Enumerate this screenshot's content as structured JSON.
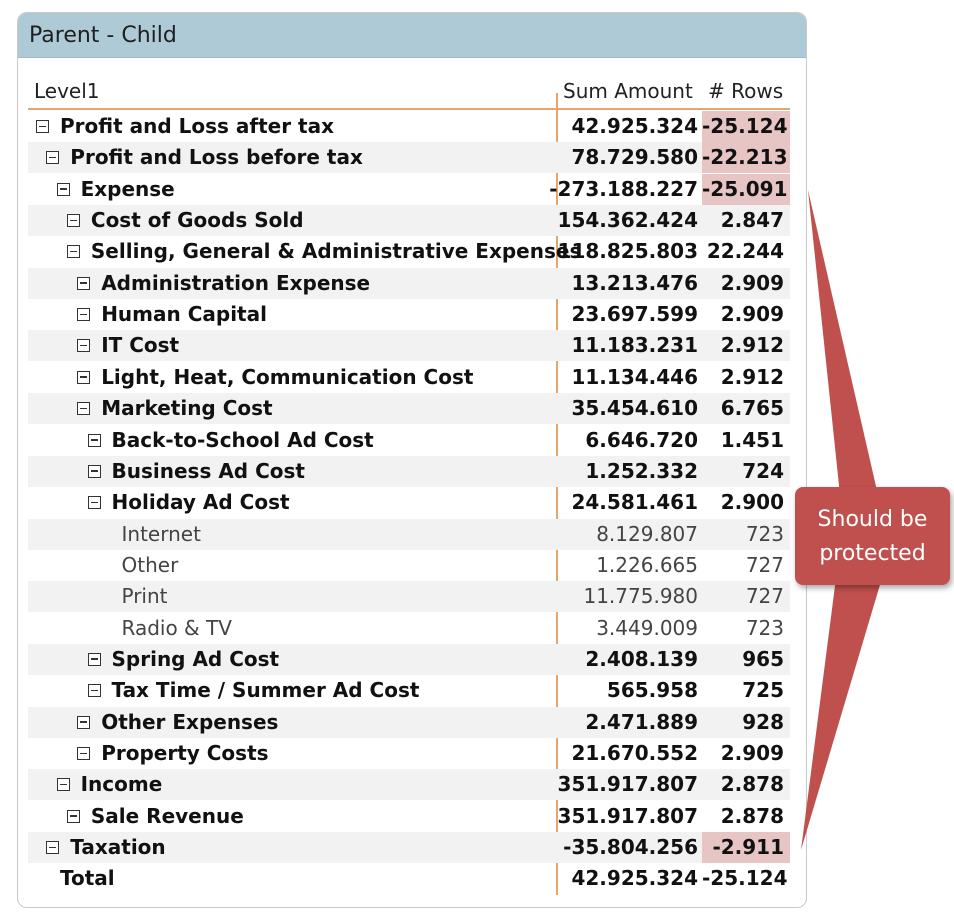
{
  "visual": {
    "title": "Parent - Child",
    "headers": {
      "level": "Level1",
      "amount": "Sum Amount",
      "rows": "# Rows"
    },
    "callout": {
      "line1": "Should be",
      "line2": "protected",
      "color": "#c0504d"
    },
    "highlight_color": "#e8c5c5",
    "rows": [
      {
        "label": "Profit and Loss after tax",
        "amount": "42.925.324",
        "count": "-25.124",
        "level": 0,
        "type": "parent",
        "highlight": true
      },
      {
        "label": "Profit and Loss before tax",
        "amount": "78.729.580",
        "count": "-22.213",
        "level": 1,
        "type": "parent",
        "highlight": true
      },
      {
        "label": "Expense",
        "amount": "-273.188.227",
        "count": "-25.091",
        "level": 2,
        "type": "parent",
        "highlight": true
      },
      {
        "label": "Cost of Goods Sold",
        "amount": "154.362.424",
        "count": "2.847",
        "level": 3,
        "type": "parent",
        "highlight": false
      },
      {
        "label": "Selling, General & Administrative Expenses",
        "amount": "118.825.803",
        "count": "22.244",
        "level": 3,
        "type": "parent",
        "highlight": false
      },
      {
        "label": "Administration Expense",
        "amount": "13.213.476",
        "count": "2.909",
        "level": 4,
        "type": "parent",
        "highlight": false
      },
      {
        "label": "Human Capital",
        "amount": "23.697.599",
        "count": "2.909",
        "level": 4,
        "type": "parent",
        "highlight": false
      },
      {
        "label": "IT Cost",
        "amount": "11.183.231",
        "count": "2.912",
        "level": 4,
        "type": "parent",
        "highlight": false
      },
      {
        "label": "Light, Heat, Communication Cost",
        "amount": "11.134.446",
        "count": "2.912",
        "level": 4,
        "type": "parent",
        "highlight": false
      },
      {
        "label": "Marketing Cost",
        "amount": "35.454.610",
        "count": "6.765",
        "level": 4,
        "type": "parent",
        "highlight": false
      },
      {
        "label": "Back-to-School Ad Cost",
        "amount": "6.646.720",
        "count": "1.451",
        "level": 5,
        "type": "parent",
        "highlight": false
      },
      {
        "label": "Business Ad Cost",
        "amount": "1.252.332",
        "count": "724",
        "level": 5,
        "type": "parent",
        "highlight": false
      },
      {
        "label": "Holiday Ad Cost",
        "amount": "24.581.461",
        "count": "2.900",
        "level": 5,
        "type": "parent",
        "highlight": false
      },
      {
        "label": "Internet",
        "amount": "8.129.807",
        "count": "723",
        "level": 6,
        "type": "leaf",
        "highlight": false
      },
      {
        "label": "Other",
        "amount": "1.226.665",
        "count": "727",
        "level": 6,
        "type": "leaf",
        "highlight": false
      },
      {
        "label": "Print",
        "amount": "11.775.980",
        "count": "727",
        "level": 6,
        "type": "leaf",
        "highlight": false
      },
      {
        "label": "Radio & TV",
        "amount": "3.449.009",
        "count": "723",
        "level": 6,
        "type": "leaf",
        "highlight": false
      },
      {
        "label": "Spring Ad Cost",
        "amount": "2.408.139",
        "count": "965",
        "level": 5,
        "type": "parent",
        "highlight": false
      },
      {
        "label": "Tax Time / Summer Ad Cost",
        "amount": "565.958",
        "count": "725",
        "level": 5,
        "type": "parent",
        "highlight": false
      },
      {
        "label": "Other Expenses",
        "amount": "2.471.889",
        "count": "928",
        "level": 4,
        "type": "parent",
        "highlight": false
      },
      {
        "label": "Property Costs",
        "amount": "21.670.552",
        "count": "2.909",
        "level": 4,
        "type": "parent",
        "highlight": false
      },
      {
        "label": "Income",
        "amount": "351.917.807",
        "count": "2.878",
        "level": 2,
        "type": "parent",
        "highlight": false
      },
      {
        "label": "Sale Revenue",
        "amount": "351.917.807",
        "count": "2.878",
        "level": 3,
        "type": "parent",
        "highlight": false
      },
      {
        "label": "Taxation",
        "amount": "-35.804.256",
        "count": "-2.911",
        "level": 1,
        "type": "parent",
        "highlight": true
      },
      {
        "label": "Total",
        "amount": "42.925.324",
        "count": "-25.124",
        "level": 0,
        "type": "total",
        "highlight": false
      }
    ]
  }
}
